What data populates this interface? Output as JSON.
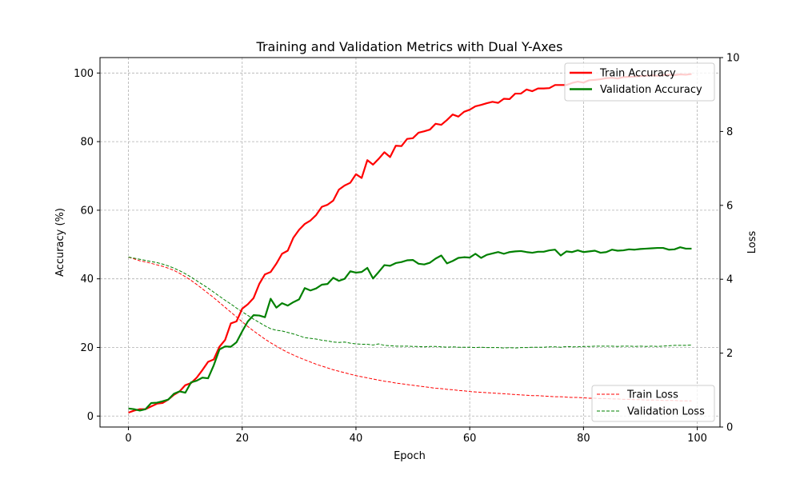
{
  "chart_data": {
    "type": "line",
    "title": "Training and Validation Metrics with Dual Y-Axes",
    "xlabel": "Epoch",
    "ylabel_left": "Accuracy (%)",
    "ylabel_right": "Loss",
    "xlim": [
      -5,
      104
    ],
    "ylim_left": [
      -3.2,
      104.5
    ],
    "ylim_right": [
      0,
      10
    ],
    "xticks": [
      0,
      20,
      40,
      60,
      80,
      100
    ],
    "yticks_left": [
      0,
      20,
      40,
      60,
      80,
      100
    ],
    "yticks_right": [
      0,
      2,
      4,
      6,
      8,
      10
    ],
    "grid": true,
    "legend_upper_placement": "upper-right",
    "legend_lower_placement": "lower-right",
    "x": [
      0,
      1,
      2,
      3,
      4,
      5,
      6,
      7,
      8,
      9,
      10,
      11,
      12,
      13,
      14,
      15,
      16,
      17,
      18,
      19,
      20,
      21,
      22,
      23,
      24,
      25,
      26,
      27,
      28,
      29,
      30,
      31,
      32,
      33,
      34,
      35,
      36,
      37,
      38,
      39,
      40,
      41,
      42,
      43,
      44,
      45,
      46,
      47,
      48,
      49,
      50,
      51,
      52,
      53,
      54,
      55,
      56,
      57,
      58,
      59,
      60,
      61,
      62,
      63,
      64,
      65,
      66,
      67,
      68,
      69,
      70,
      71,
      72,
      73,
      74,
      75,
      76,
      77,
      78,
      79,
      80,
      81,
      82,
      83,
      84,
      85,
      86,
      87,
      88,
      89,
      90,
      91,
      92,
      93,
      94,
      95,
      96,
      97,
      98,
      99
    ],
    "series": [
      {
        "name": "Train Accuracy",
        "axis": "left",
        "color": "#ff0000",
        "style": "solid",
        "values": [
          1,
          1.6,
          2,
          2,
          2.8,
          3.6,
          3.8,
          4.8,
          6.2,
          7.2,
          9,
          9.6,
          11.2,
          13.4,
          15.8,
          16.5,
          20.2,
          22.2,
          27,
          27.6,
          31.3,
          32.6,
          34.4,
          38.5,
          41.3,
          42,
          44.4,
          47.3,
          48.2,
          52,
          54.3,
          56,
          57,
          58.6,
          61,
          61.6,
          62.8,
          66,
          67.2,
          68,
          70.5,
          69.4,
          74.6,
          73.3,
          75,
          76.9,
          75.5,
          78.8,
          78.7,
          80.8,
          81,
          82.6,
          83,
          83.5,
          85.2,
          84.9,
          86.3,
          87.9,
          87.3,
          88.7,
          89.3,
          90.3,
          90.7,
          91.2,
          91.6,
          91.3,
          92.5,
          92.4,
          94,
          94,
          95.2,
          94.7,
          95.5,
          95.5,
          95.6,
          96.5,
          96.5,
          96.5,
          97.1,
          97.5,
          97.2,
          97.9,
          98,
          98.2,
          98.5,
          98.6,
          98.4,
          98.8,
          98.9,
          99,
          99.1,
          99.2,
          99.3,
          99.2,
          99.4,
          99.5,
          99.4,
          99.6,
          99.5,
          99.7
        ]
      },
      {
        "name": "Validation Accuracy",
        "axis": "left",
        "color": "#008000",
        "style": "solid",
        "values": [
          2.2,
          2,
          1.6,
          2,
          3.8,
          3.9,
          4.3,
          4.8,
          6.5,
          7.2,
          6.8,
          9.8,
          10.3,
          11.2,
          11,
          14.8,
          19.4,
          20.3,
          20.2,
          21.5,
          24.7,
          27.6,
          29.4,
          29.3,
          28.8,
          34.2,
          31.6,
          32.9,
          32.2,
          33.2,
          34,
          37.3,
          36.6,
          37.2,
          38.3,
          38.5,
          40.3,
          39.4,
          40,
          42.2,
          41.8,
          42,
          43.2,
          40.1,
          42,
          44,
          43.8,
          44.6,
          44.9,
          45.4,
          45.5,
          44.4,
          44.2,
          44.7,
          45.9,
          46.8,
          44.5,
          45.2,
          46.1,
          46.3,
          46.2,
          47.3,
          46.1,
          47,
          47.4,
          47.8,
          47.3,
          47.8,
          48,
          48.1,
          47.8,
          47.6,
          47.9,
          47.9,
          48.3,
          48.5,
          46.8,
          48,
          47.8,
          48.3,
          47.8,
          48,
          48.2,
          47.6,
          47.8,
          48.5,
          48.2,
          48.3,
          48.6,
          48.5,
          48.7,
          48.8,
          48.9,
          49,
          49,
          48.5,
          48.6,
          49.2,
          48.8,
          48.8
        ]
      },
      {
        "name": "Train Loss",
        "axis": "right",
        "color": "#ff0000",
        "style": "dashed",
        "values": [
          4.6,
          4.55,
          4.5,
          4.47,
          4.43,
          4.39,
          4.35,
          4.3,
          4.24,
          4.16,
          4.07,
          3.97,
          3.86,
          3.74,
          3.62,
          3.5,
          3.37,
          3.24,
          3.11,
          2.98,
          2.85,
          2.72,
          2.6,
          2.49,
          2.38,
          2.28,
          2.19,
          2.1,
          2.02,
          1.95,
          1.88,
          1.82,
          1.76,
          1.7,
          1.65,
          1.6,
          1.55,
          1.51,
          1.47,
          1.43,
          1.39,
          1.36,
          1.33,
          1.3,
          1.27,
          1.24,
          1.22,
          1.19,
          1.17,
          1.15,
          1.13,
          1.11,
          1.09,
          1.07,
          1.05,
          1.04,
          1.02,
          1.01,
          0.99,
          0.98,
          0.96,
          0.95,
          0.94,
          0.93,
          0.92,
          0.91,
          0.9,
          0.89,
          0.88,
          0.87,
          0.86,
          0.85,
          0.85,
          0.84,
          0.83,
          0.82,
          0.82,
          0.81,
          0.8,
          0.8,
          0.79,
          0.78,
          0.78,
          0.77,
          0.77,
          0.76,
          0.76,
          0.75,
          0.75,
          0.74,
          0.74,
          0.73,
          0.73,
          0.73,
          0.72,
          0.72,
          0.72,
          0.71,
          0.71,
          0.71
        ]
      },
      {
        "name": "Validation Loss",
        "axis": "right",
        "color": "#008000",
        "style": "dashed",
        "values": [
          4.6,
          4.57,
          4.54,
          4.51,
          4.48,
          4.45,
          4.41,
          4.36,
          4.3,
          4.23,
          4.15,
          4.06,
          3.96,
          3.86,
          3.76,
          3.65,
          3.54,
          3.43,
          3.33,
          3.22,
          3.12,
          3.02,
          2.92,
          2.83,
          2.74,
          2.66,
          2.62,
          2.6,
          2.56,
          2.52,
          2.47,
          2.42,
          2.4,
          2.38,
          2.35,
          2.33,
          2.3,
          2.29,
          2.3,
          2.27,
          2.25,
          2.24,
          2.24,
          2.22,
          2.25,
          2.21,
          2.2,
          2.19,
          2.19,
          2.19,
          2.18,
          2.18,
          2.17,
          2.18,
          2.18,
          2.17,
          2.16,
          2.17,
          2.16,
          2.16,
          2.16,
          2.15,
          2.16,
          2.15,
          2.15,
          2.15,
          2.14,
          2.15,
          2.14,
          2.15,
          2.15,
          2.16,
          2.16,
          2.16,
          2.17,
          2.17,
          2.16,
          2.18,
          2.17,
          2.17,
          2.18,
          2.18,
          2.19,
          2.19,
          2.19,
          2.19,
          2.18,
          2.19,
          2.19,
          2.18,
          2.19,
          2.18,
          2.19,
          2.18,
          2.19,
          2.2,
          2.21,
          2.21,
          2.21,
          2.22
        ]
      }
    ]
  }
}
